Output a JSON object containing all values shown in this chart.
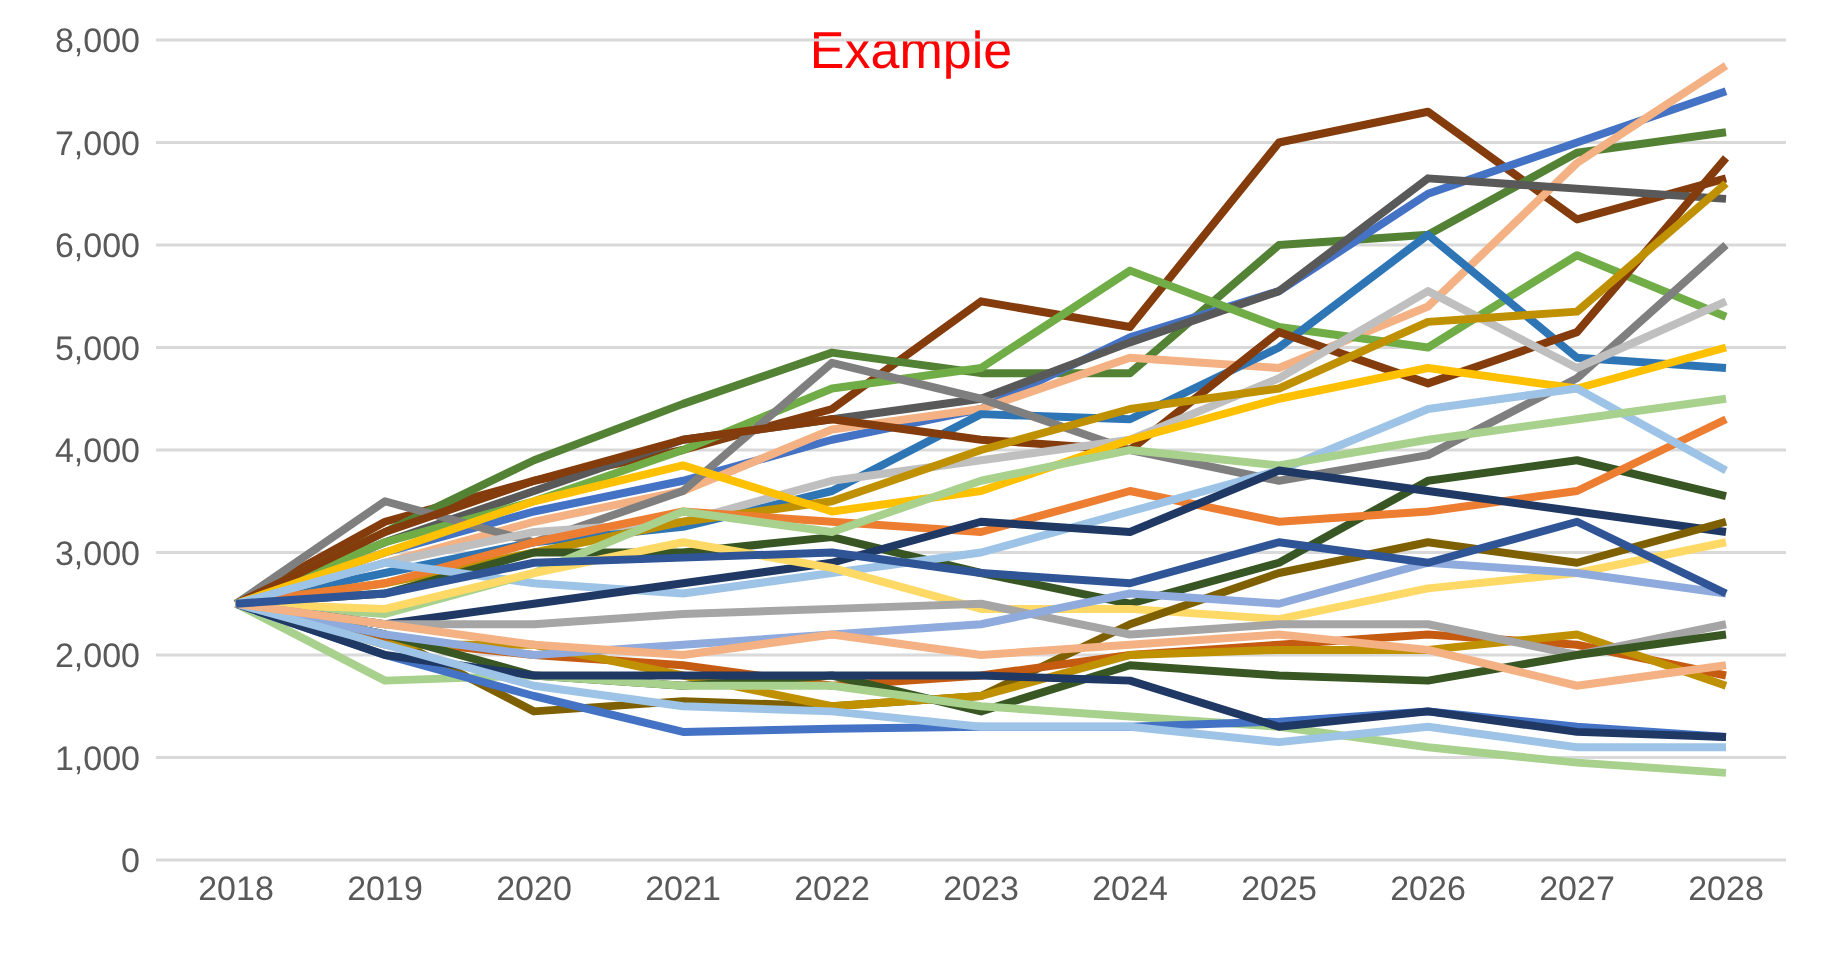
{
  "chart_data": {
    "type": "line",
    "title": "Example",
    "categories": [
      "2018",
      "2019",
      "2020",
      "2021",
      "2022",
      "2023",
      "2024",
      "2025",
      "2026",
      "2027",
      "2028"
    ],
    "ylim": [
      0,
      8000
    ],
    "yticks": [
      {
        "value": 0,
        "label": "0"
      },
      {
        "value": 1000,
        "label": "1,000"
      },
      {
        "value": 2000,
        "label": "2,000"
      },
      {
        "value": 3000,
        "label": "3,000"
      },
      {
        "value": 4000,
        "label": "4,000"
      },
      {
        "value": 5000,
        "label": "5,000"
      },
      {
        "value": 6000,
        "label": "6,000"
      },
      {
        "value": 7000,
        "label": "7,000"
      },
      {
        "value": 8000,
        "label": "8,000"
      }
    ],
    "grid": "y",
    "marker": "none",
    "line_style": "solid",
    "series": [
      {
        "color": "#843c0c",
        "values": [
          2500,
          3300,
          3700,
          4000,
          4400,
          5450,
          5200,
          7000,
          7300,
          6250,
          6650
        ]
      },
      {
        "color": "#548235",
        "values": [
          2500,
          3200,
          3900,
          4450,
          4950,
          4750,
          4750,
          6000,
          6100,
          6900,
          7100
        ]
      },
      {
        "color": "#4472c4",
        "values": [
          2500,
          3000,
          3400,
          3700,
          4100,
          4400,
          5100,
          5550,
          6500,
          7000,
          7500
        ]
      },
      {
        "color": "#f4b183",
        "values": [
          2500,
          2900,
          3300,
          3600,
          4200,
          4400,
          4900,
          4800,
          5400,
          6800,
          7750
        ]
      },
      {
        "color": "#595959",
        "values": [
          2500,
          3100,
          3600,
          4100,
          4300,
          4500,
          5050,
          5550,
          6650,
          6550,
          6450
        ]
      },
      {
        "color": "#70ad47",
        "values": [
          2500,
          3100,
          3500,
          4000,
          4600,
          4800,
          5750,
          5200,
          5000,
          5900,
          5300
        ]
      },
      {
        "color": "#2e75b6",
        "values": [
          2500,
          2800,
          3100,
          3250,
          3600,
          4350,
          4300,
          5000,
          6100,
          4900,
          4800
        ]
      },
      {
        "color": "#7f7f7f",
        "values": [
          2500,
          3500,
          3100,
          3600,
          4850,
          4500,
          4000,
          3700,
          3950,
          4700,
          6000
        ]
      },
      {
        "color": "#843c0c",
        "values": [
          2500,
          3200,
          3700,
          4100,
          4300,
          4100,
          4000,
          5150,
          4650,
          5150,
          6850
        ]
      },
      {
        "color": "#bfbfbf",
        "values": [
          2500,
          2900,
          3200,
          3300,
          3700,
          3900,
          4100,
          4700,
          5550,
          4800,
          5450
        ]
      },
      {
        "color": "#bf9000",
        "values": [
          2500,
          2700,
          3000,
          3300,
          3500,
          4000,
          4400,
          4600,
          5250,
          5350,
          6600
        ]
      },
      {
        "color": "#ffc000",
        "values": [
          2500,
          3000,
          3500,
          3850,
          3400,
          3600,
          4100,
          4500,
          4800,
          4600,
          5000
        ]
      },
      {
        "color": "#375623",
        "values": [
          2500,
          2600,
          3000,
          3000,
          3150,
          2800,
          2500,
          2900,
          3700,
          3900,
          3550
        ]
      },
      {
        "color": "#ed7d31",
        "values": [
          2500,
          2700,
          3100,
          3400,
          3300,
          3200,
          3600,
          3300,
          3400,
          3600,
          4300
        ]
      },
      {
        "color": "#9dc3e6",
        "values": [
          2500,
          2900,
          2700,
          2600,
          2800,
          3000,
          3400,
          3800,
          4400,
          4600,
          3800
        ]
      },
      {
        "color": "#a9d18e",
        "values": [
          2500,
          2400,
          2800,
          3400,
          3200,
          3700,
          4000,
          3850,
          4100,
          4300,
          4500
        ]
      },
      {
        "color": "#1f3864",
        "values": [
          2500,
          2300,
          2500,
          2700,
          2900,
          3300,
          3200,
          3800,
          3600,
          3400,
          3200
        ]
      },
      {
        "color": "#ffd966",
        "values": [
          2500,
          2450,
          2800,
          3100,
          2850,
          2450,
          2450,
          2350,
          2650,
          2800,
          3100
        ]
      },
      {
        "color": "#7f6000",
        "values": [
          2500,
          2200,
          1450,
          1550,
          1500,
          1600,
          2300,
          2800,
          3100,
          2900,
          3300
        ]
      },
      {
        "color": "#c55a11",
        "values": [
          2500,
          2150,
          2000,
          1900,
          1700,
          1800,
          2000,
          2100,
          2200,
          2100,
          1800
        ]
      },
      {
        "color": "#bf9000",
        "values": [
          2500,
          2100,
          2100,
          1800,
          1500,
          1600,
          2000,
          2050,
          2050,
          2200,
          1700
        ]
      },
      {
        "color": "#a5a5a5",
        "values": [
          2500,
          2300,
          2300,
          2400,
          2450,
          2500,
          2200,
          2300,
          2300,
          2000,
          2300
        ]
      },
      {
        "color": "#385723",
        "values": [
          2500,
          2200,
          1800,
          1700,
          1800,
          1450,
          1900,
          1800,
          1750,
          2000,
          2200
        ]
      },
      {
        "color": "#8faadc",
        "values": [
          2500,
          2200,
          2000,
          2100,
          2200,
          2300,
          2600,
          2500,
          2900,
          2800,
          2600
        ]
      },
      {
        "color": "#a9d18e",
        "values": [
          2500,
          1750,
          1800,
          1700,
          1700,
          1500,
          1400,
          1300,
          1100,
          950,
          850
        ]
      },
      {
        "color": "#4472c4",
        "values": [
          2500,
          2000,
          1600,
          1250,
          1280,
          1300,
          1300,
          1350,
          1450,
          1300,
          1200
        ]
      },
      {
        "color": "#1f3864",
        "values": [
          2500,
          2000,
          1800,
          1800,
          1800,
          1800,
          1750,
          1300,
          1450,
          1250,
          1200
        ]
      },
      {
        "color": "#9dc3e6",
        "values": [
          2500,
          2100,
          1700,
          1500,
          1450,
          1300,
          1300,
          1150,
          1300,
          1100,
          1100
        ]
      },
      {
        "color": "#f4b183",
        "values": [
          2500,
          2300,
          2100,
          2000,
          2200,
          2000,
          2100,
          2200,
          2050,
          1700,
          1900
        ]
      },
      {
        "color": "#2f5597",
        "values": [
          2500,
          2600,
          2900,
          2950,
          3000,
          2800,
          2700,
          3100,
          2900,
          3300,
          2600
        ]
      }
    ]
  }
}
